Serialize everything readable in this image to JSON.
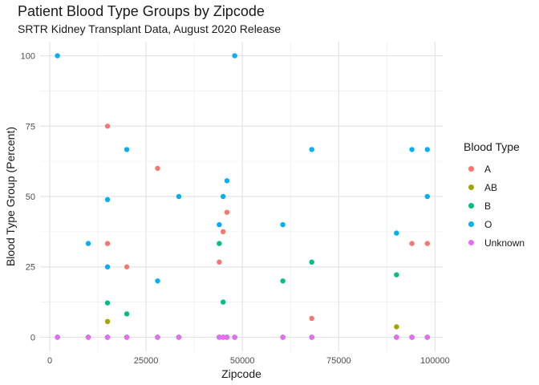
{
  "chart_data": {
    "type": "scatter",
    "title": "Patient Blood Type Groups by Zipcode",
    "subtitle": "SRTR Kidney Transplant Data, August 2020 Release",
    "xlabel": "Zipcode",
    "ylabel": "Blood Type Group (Percent)",
    "xlim": [
      -2500,
      102000
    ],
    "ylim": [
      -5,
      105
    ],
    "x_ticks": [
      0,
      25000,
      50000,
      75000,
      100000
    ],
    "x_tick_labels": [
      "0",
      "25000",
      "50000",
      "75000",
      "100000"
    ],
    "y_ticks": [
      0,
      25,
      50,
      75,
      100
    ],
    "y_tick_labels": [
      "0",
      "25",
      "50",
      "75",
      "100"
    ],
    "grid": true,
    "legend_position": "right",
    "legend_title": "Blood Type",
    "series": [
      {
        "name": "A",
        "color": "#F8766D",
        "points": [
          [
            2000,
            0
          ],
          [
            10000,
            0
          ],
          [
            15000,
            75
          ],
          [
            15000,
            33.3
          ],
          [
            15000,
            0
          ],
          [
            20000,
            25
          ],
          [
            20000,
            0
          ],
          [
            28000,
            60
          ],
          [
            28000,
            0
          ],
          [
            33500,
            0
          ],
          [
            44000,
            26.7
          ],
          [
            44000,
            0
          ],
          [
            45000,
            37.5
          ],
          [
            45000,
            0
          ],
          [
            46000,
            44.4
          ],
          [
            46000,
            0
          ],
          [
            48000,
            0
          ],
          [
            60500,
            0
          ],
          [
            68000,
            6.7
          ],
          [
            68000,
            0
          ],
          [
            90000,
            0
          ],
          [
            94000,
            33.3
          ],
          [
            94000,
            0
          ],
          [
            98000,
            33.3
          ],
          [
            98000,
            0
          ]
        ]
      },
      {
        "name": "AB",
        "color": "#A3A500",
        "points": [
          [
            2000,
            0
          ],
          [
            10000,
            0
          ],
          [
            15000,
            5.6
          ],
          [
            15000,
            0
          ],
          [
            20000,
            0
          ],
          [
            28000,
            0
          ],
          [
            33500,
            0
          ],
          [
            44000,
            0
          ],
          [
            45000,
            0
          ],
          [
            46000,
            0
          ],
          [
            48000,
            0
          ],
          [
            60500,
            0
          ],
          [
            68000,
            0
          ],
          [
            90000,
            3.7
          ],
          [
            94000,
            0
          ],
          [
            98000,
            0
          ]
        ]
      },
      {
        "name": "B",
        "color": "#00BF7D",
        "points": [
          [
            2000,
            0
          ],
          [
            10000,
            0
          ],
          [
            15000,
            12.2
          ],
          [
            15000,
            0
          ],
          [
            20000,
            8.3
          ],
          [
            20000,
            0
          ],
          [
            28000,
            0
          ],
          [
            33500,
            0
          ],
          [
            44000,
            33.3
          ],
          [
            44000,
            0
          ],
          [
            45000,
            12.5
          ],
          [
            45000,
            0
          ],
          [
            46000,
            0
          ],
          [
            48000,
            0
          ],
          [
            60500,
            20
          ],
          [
            60500,
            0
          ],
          [
            68000,
            26.7
          ],
          [
            68000,
            0
          ],
          [
            90000,
            22.2
          ],
          [
            90000,
            0
          ],
          [
            94000,
            0
          ],
          [
            98000,
            0
          ]
        ]
      },
      {
        "name": "O",
        "color": "#00B0F6",
        "points": [
          [
            2000,
            100
          ],
          [
            2000,
            0
          ],
          [
            10000,
            33.3
          ],
          [
            10000,
            0
          ],
          [
            15000,
            48.9
          ],
          [
            15000,
            25
          ],
          [
            15000,
            0
          ],
          [
            20000,
            66.7
          ],
          [
            20000,
            0
          ],
          [
            28000,
            20
          ],
          [
            28000,
            0
          ],
          [
            33500,
            50
          ],
          [
            33500,
            0
          ],
          [
            44000,
            40
          ],
          [
            44000,
            0
          ],
          [
            45000,
            50
          ],
          [
            45000,
            0
          ],
          [
            46000,
            55.6
          ],
          [
            46000,
            0
          ],
          [
            48000,
            100
          ],
          [
            48000,
            0
          ],
          [
            60500,
            40
          ],
          [
            60500,
            0
          ],
          [
            68000,
            66.7
          ],
          [
            68000,
            0
          ],
          [
            90000,
            37
          ],
          [
            90000,
            0
          ],
          [
            94000,
            66.7
          ],
          [
            94000,
            0
          ],
          [
            98000,
            66.7
          ],
          [
            98000,
            50
          ],
          [
            98000,
            0
          ]
        ]
      },
      {
        "name": "Unknown",
        "color": "#E76BF3",
        "points": [
          [
            2000,
            0
          ],
          [
            10000,
            0
          ],
          [
            15000,
            0
          ],
          [
            20000,
            0
          ],
          [
            28000,
            0
          ],
          [
            33500,
            0
          ],
          [
            44000,
            0
          ],
          [
            45000,
            0
          ],
          [
            46000,
            0
          ],
          [
            48000,
            0
          ],
          [
            60500,
            0
          ],
          [
            68000,
            0
          ],
          [
            90000,
            0
          ],
          [
            94000,
            0
          ],
          [
            98000,
            0
          ]
        ]
      }
    ]
  }
}
